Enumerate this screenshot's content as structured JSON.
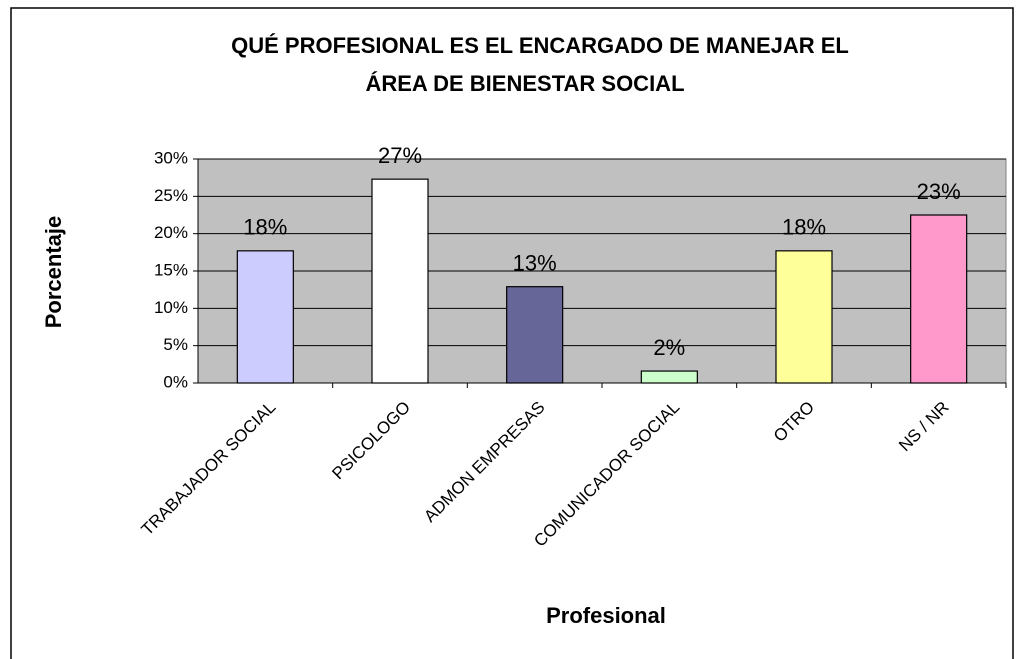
{
  "chart_data": {
    "type": "bar",
    "title": [
      "QUÉ PROFESIONAL ES EL ENCARGADO DE MANEJAR EL",
      "ÁREA DE BIENESTAR SOCIAL"
    ],
    "x_label": "Profesional",
    "y_label": "Porcentaje",
    "categories": [
      "TRABAJADOR SOCIAL",
      "PSICOLOGO",
      "ADMON EMPRESAS",
      "COMUNICADOR SOCIAL",
      "OTRO",
      "NS / NR"
    ],
    "values": [
      17.7,
      27.3,
      12.9,
      1.6,
      17.7,
      22.5
    ],
    "value_labels": [
      "18%",
      "27%",
      "13%",
      "2%",
      "18%",
      "23%"
    ],
    "colors": [
      "#ccccff",
      "#ffffff",
      "#666699",
      "#ccffcc",
      "#ffff99",
      "#ff99cc"
    ],
    "ylim": [
      0,
      30
    ],
    "yticks": [
      {
        "value": 0,
        "label": "0%"
      },
      {
        "value": 5,
        "label": "5%"
      },
      {
        "value": 10,
        "label": "10%"
      },
      {
        "value": 15,
        "label": "15%"
      },
      {
        "value": 20,
        "label": "20%"
      },
      {
        "value": 25,
        "label": "25%"
      },
      {
        "value": 30,
        "label": "30%"
      }
    ],
    "grid": true
  }
}
